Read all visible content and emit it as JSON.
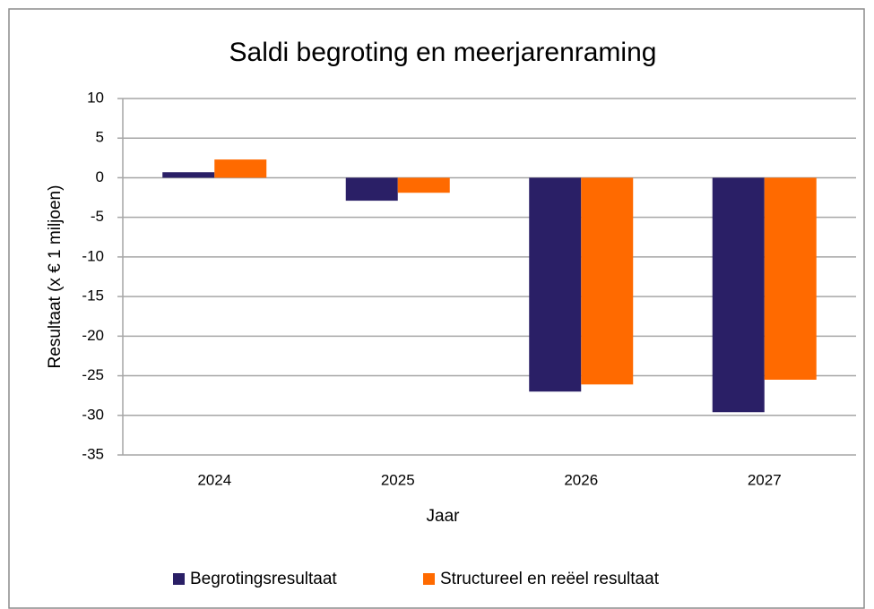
{
  "chart_data": {
    "type": "bar",
    "title": "Saldi begroting en meerjarenraming",
    "x_label": "Jaar",
    "y_label": "Resultaat (x € 1 miljoen)",
    "categories": [
      "2024",
      "2025",
      "2026",
      "2027"
    ],
    "series": [
      {
        "name": "Begrotingsresultaat",
        "color": "#2a1f66",
        "values": [
          0.7,
          -2.9,
          -27.0,
          -29.6
        ]
      },
      {
        "name": "Structureel en reëel resultaat",
        "color": "#ff6a00",
        "values": [
          2.3,
          -1.9,
          -26.1,
          -25.5
        ]
      }
    ],
    "ylim": [
      -35,
      10
    ],
    "yticks": [
      -35,
      -30,
      -25,
      -20,
      -15,
      -10,
      -5,
      0,
      5,
      10
    ],
    "grid": true,
    "legend": "bottom"
  }
}
